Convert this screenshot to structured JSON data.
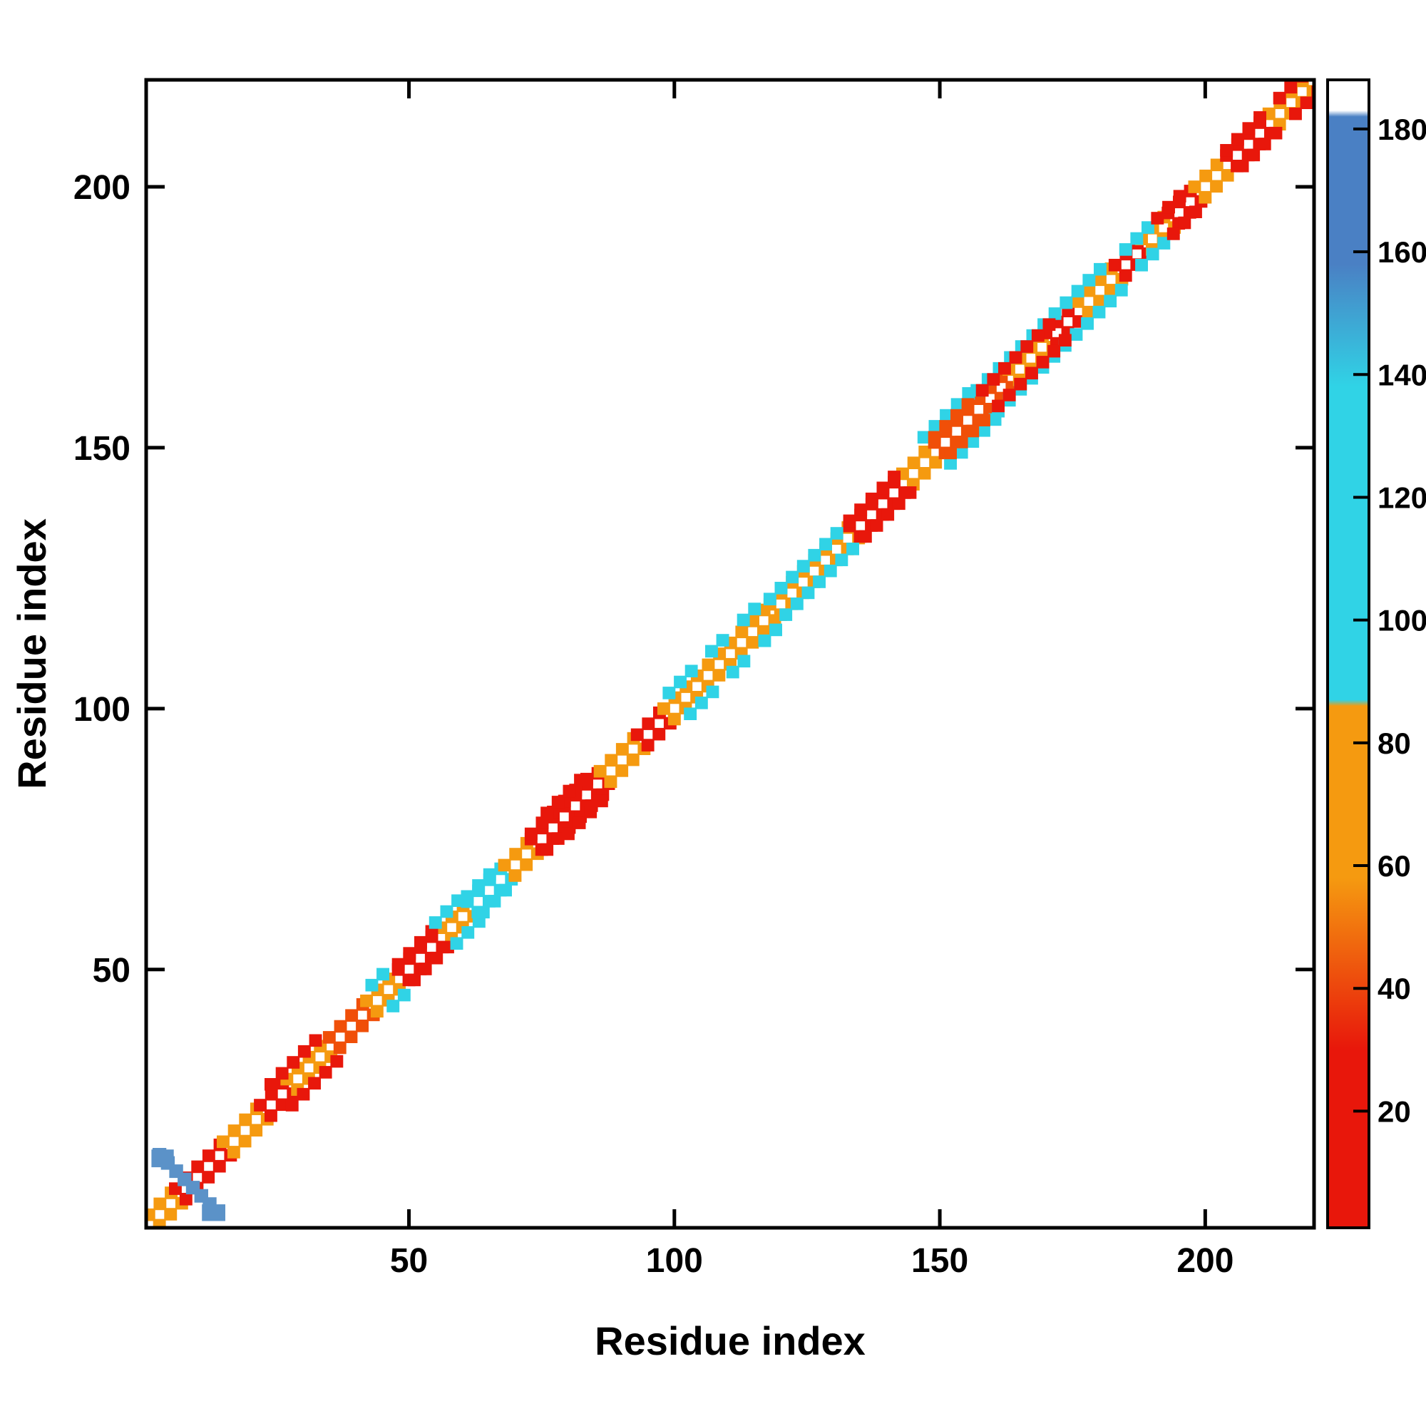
{
  "figure": {
    "background": "#ffffff"
  },
  "chart_data": {
    "type": "heatmap",
    "subtype": "protein-residue-contact-map",
    "title": "",
    "xlabel": "Residue index",
    "ylabel": "Residue index",
    "xlim": [
      0.5,
      220.5
    ],
    "ylim": [
      0.5,
      220.5
    ],
    "xticks": [
      50,
      100,
      150,
      200
    ],
    "yticks": [
      50,
      100,
      150,
      200
    ],
    "grid": false,
    "symmetric": true,
    "cell_size": 2.4,
    "cell_step": 2.1,
    "palette": {
      "red": "#e8170b",
      "orangered": "#f04f08",
      "orange": "#f59a10",
      "cyan": "#30d3e6",
      "steelblue": "#5b92c8",
      "blue": "#4a80c4",
      "white": "#ffffff",
      "frame": "#000000"
    },
    "colorbar": {
      "min": 1,
      "max": 188,
      "ticks": [
        20,
        40,
        60,
        80,
        100,
        120,
        140,
        160,
        180
      ],
      "legend_position": "right",
      "stops": [
        {
          "v": 188,
          "c": "#ffffff"
        },
        {
          "v": 183,
          "c": "#ffffff"
        },
        {
          "v": 182,
          "c": "#4a80c4"
        },
        {
          "v": 158,
          "c": "#4a80c4"
        },
        {
          "v": 138,
          "c": "#30d3e6"
        },
        {
          "v": 87,
          "c": "#30d3e6"
        },
        {
          "v": 86,
          "c": "#f59a10"
        },
        {
          "v": 58,
          "c": "#f59a10"
        },
        {
          "v": 30,
          "c": "#e8170b"
        },
        {
          "v": 1,
          "c": "#e8170b"
        }
      ]
    },
    "segments": [
      {
        "s": 1,
        "e": 6,
        "o": 2,
        "c": "orange"
      },
      {
        "s": 6,
        "e": 15,
        "o": 2,
        "c": "red"
      },
      {
        "s": 15,
        "e": 22,
        "o": 2,
        "c": "orange"
      },
      {
        "s": 22,
        "e": 27,
        "o": 2,
        "c": "red"
      },
      {
        "s": 27,
        "e": 35,
        "o": 2,
        "c": "orange"
      },
      {
        "s": 35,
        "e": 42,
        "o": 2,
        "c": "orangered"
      },
      {
        "s": 42,
        "e": 48,
        "o": 2,
        "c": "orange"
      },
      {
        "s": 48,
        "e": 56,
        "o": 2,
        "c": "red"
      },
      {
        "s": 56,
        "e": 61,
        "o": 2,
        "c": "orange"
      },
      {
        "s": 61,
        "e": 68,
        "o": 2,
        "c": "cyan"
      },
      {
        "s": 68,
        "e": 73,
        "o": 2,
        "c": "orange"
      },
      {
        "s": 73,
        "e": 86,
        "o": 2,
        "c": "red"
      },
      {
        "s": 86,
        "e": 93,
        "o": 2,
        "c": "orange"
      },
      {
        "s": 93,
        "e": 98,
        "o": 2,
        "c": "red"
      },
      {
        "s": 98,
        "e": 118,
        "o": 2,
        "c": "orange"
      },
      {
        "s": 118,
        "e": 133,
        "o": 2,
        "c": "orange"
      },
      {
        "s": 133,
        "e": 143,
        "o": 2,
        "c": "red"
      },
      {
        "s": 143,
        "e": 149,
        "o": 2,
        "c": "orange"
      },
      {
        "s": 149,
        "e": 163,
        "o": 2,
        "c": "orangered"
      },
      {
        "s": 163,
        "e": 170,
        "o": 2,
        "c": "orange"
      },
      {
        "s": 170,
        "e": 176,
        "o": 2,
        "c": "red"
      },
      {
        "s": 176,
        "e": 183,
        "o": 2,
        "c": "orange"
      },
      {
        "s": 183,
        "e": 188,
        "o": 2,
        "c": "red"
      },
      {
        "s": 188,
        "e": 193,
        "o": 2,
        "c": "orange"
      },
      {
        "s": 193,
        "e": 198,
        "o": 2,
        "c": "red"
      },
      {
        "s": 198,
        "e": 204,
        "o": 2,
        "c": "orange"
      },
      {
        "s": 204,
        "e": 212,
        "o": 2,
        "c": "red"
      },
      {
        "s": 212,
        "e": 220,
        "o": 2,
        "c": "orange"
      },
      {
        "s": 24,
        "e": 33,
        "o": 4,
        "c": "red"
      },
      {
        "s": 43,
        "e": 47,
        "o": 4,
        "c": "cyan"
      },
      {
        "s": 48,
        "e": 55,
        "o": 3,
        "c": "red"
      },
      {
        "s": 55,
        "e": 60,
        "o": 4,
        "c": "cyan"
      },
      {
        "s": 61,
        "e": 67,
        "o": 3,
        "c": "cyan"
      },
      {
        "s": 73,
        "e": 85,
        "o": 3,
        "c": "red"
      },
      {
        "s": 76,
        "e": 83,
        "o": 4,
        "c": "red"
      },
      {
        "s": 99,
        "e": 104,
        "o": 4,
        "c": "cyan"
      },
      {
        "s": 107,
        "e": 111,
        "o": 4,
        "c": "cyan"
      },
      {
        "s": 113,
        "e": 117,
        "o": 4,
        "c": "cyan"
      },
      {
        "s": 118,
        "e": 131,
        "o": 3,
        "c": "cyan"
      },
      {
        "s": 133,
        "e": 142,
        "o": 3,
        "c": "red"
      },
      {
        "s": 147,
        "e": 157,
        "o": 5,
        "c": "cyan"
      },
      {
        "s": 149,
        "e": 156,
        "o": 3,
        "c": "orangered"
      },
      {
        "s": 157,
        "e": 174,
        "o": 4,
        "c": "cyan"
      },
      {
        "s": 158,
        "e": 172,
        "o": 3,
        "c": "red"
      },
      {
        "s": 176,
        "e": 181,
        "o": 4,
        "c": "cyan"
      },
      {
        "s": 185,
        "e": 190,
        "o": 3,
        "c": "cyan"
      },
      {
        "s": 191,
        "e": 196,
        "o": 3,
        "c": "red"
      },
      {
        "s": 204,
        "e": 211,
        "o": 3,
        "c": "red"
      },
      {
        "s": 214,
        "e": 219,
        "o": 3,
        "c": "red"
      }
    ],
    "anti_segments": [
      {
        "sum": 17.5,
        "s": 3,
        "e": 14.5,
        "c": "steelblue",
        "size": 2.6
      }
    ],
    "blobs": [
      {
        "x": 3.6,
        "y": 13.8,
        "w": 4.2,
        "h": 3.4,
        "c": "steelblue"
      },
      {
        "x": 13.2,
        "y": 3.4,
        "w": 4.4,
        "h": 3.2,
        "c": "steelblue"
      }
    ]
  }
}
